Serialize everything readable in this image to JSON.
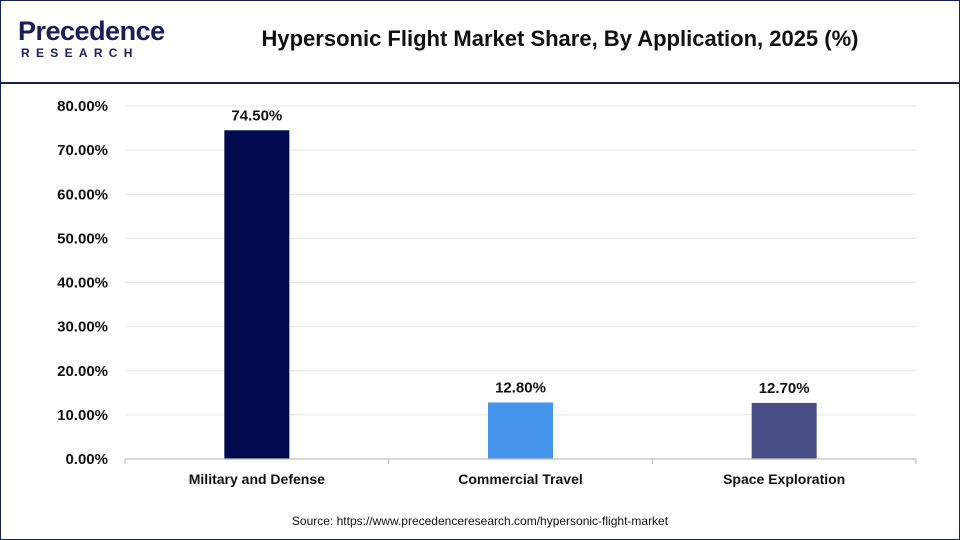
{
  "brand": {
    "top": "Precedence",
    "bottom": "RESEARCH"
  },
  "title": "Hypersonic Flight Market Share, By Application, 2025 (%)",
  "source": "Source: https://www.precedenceresearch.com/hypersonic-flight-market",
  "chart_data": {
    "type": "bar",
    "categories": [
      "Military and Defense",
      "Commercial Travel",
      "Space Exploration"
    ],
    "values": [
      74.5,
      12.8,
      12.7
    ],
    "value_labels": [
      "74.50%",
      "12.80%",
      "12.70%"
    ],
    "colors": [
      "#000a4f",
      "#4595ec",
      "#474d85"
    ],
    "ylim": [
      0,
      80
    ],
    "yticks": [
      0,
      10,
      20,
      30,
      40,
      50,
      60,
      70,
      80
    ],
    "ytick_labels": [
      "0.00%",
      "10.00%",
      "20.00%",
      "30.00%",
      "40.00%",
      "50.00%",
      "60.00%",
      "70.00%",
      "80.00%"
    ],
    "grid": true,
    "legend": "none"
  }
}
